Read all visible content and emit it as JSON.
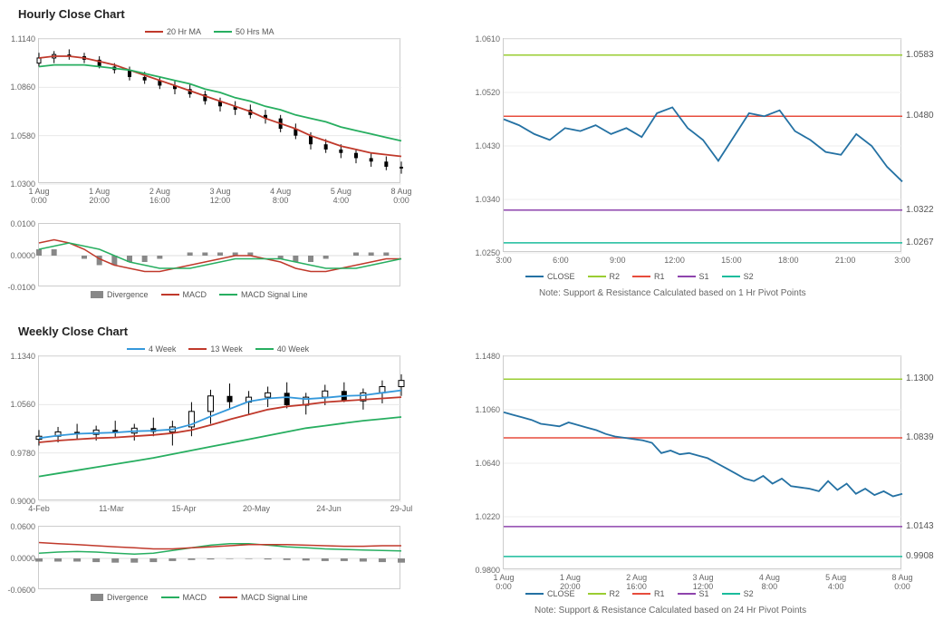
{
  "hourly": {
    "title": "Hourly Close Chart",
    "price": {
      "legend": [
        {
          "label": "20 Hr MA",
          "color": "#c0392b"
        },
        {
          "label": "50 Hrs MA",
          "color": "#27ae60"
        }
      ],
      "ylim": [
        1.03,
        1.114
      ],
      "yticks": [
        1.03,
        1.058,
        1.086,
        1.114
      ],
      "xlabels": [
        "1 Aug\n0:00",
        "1 Aug\n20:00",
        "2 Aug\n16:00",
        "3 Aug\n12:00",
        "4 Aug\n8:00",
        "5 Aug\n4:00",
        "8 Aug\n0:00"
      ],
      "candles_color": "#000000",
      "candles": [
        [
          1.1,
          1.106,
          1.098,
          1.103
        ],
        [
          1.103,
          1.107,
          1.1,
          1.105
        ],
        [
          1.105,
          1.108,
          1.102,
          1.104
        ],
        [
          1.104,
          1.106,
          1.1,
          1.102
        ],
        [
          1.102,
          1.104,
          1.097,
          1.098
        ],
        [
          1.098,
          1.1,
          1.094,
          1.096
        ],
        [
          1.096,
          1.098,
          1.09,
          1.092
        ],
        [
          1.092,
          1.095,
          1.088,
          1.09
        ],
        [
          1.09,
          1.092,
          1.085,
          1.087
        ],
        [
          1.087,
          1.09,
          1.082,
          1.085
        ],
        [
          1.085,
          1.088,
          1.08,
          1.082
        ],
        [
          1.082,
          1.084,
          1.076,
          1.078
        ],
        [
          1.078,
          1.08,
          1.072,
          1.075
        ],
        [
          1.075,
          1.078,
          1.07,
          1.073
        ],
        [
          1.073,
          1.076,
          1.068,
          1.07
        ],
        [
          1.07,
          1.073,
          1.065,
          1.068
        ],
        [
          1.068,
          1.07,
          1.06,
          1.062
        ],
        [
          1.062,
          1.065,
          1.056,
          1.058
        ],
        [
          1.058,
          1.06,
          1.05,
          1.053
        ],
        [
          1.053,
          1.056,
          1.048,
          1.05
        ],
        [
          1.05,
          1.053,
          1.045,
          1.048
        ],
        [
          1.048,
          1.05,
          1.042,
          1.045
        ],
        [
          1.045,
          1.048,
          1.04,
          1.043
        ],
        [
          1.043,
          1.046,
          1.038,
          1.04
        ],
        [
          1.04,
          1.043,
          1.036,
          1.039
        ]
      ],
      "ma20": [
        1.103,
        1.104,
        1.104,
        1.103,
        1.101,
        1.099,
        1.096,
        1.093,
        1.09,
        1.087,
        1.084,
        1.081,
        1.078,
        1.075,
        1.072,
        1.068,
        1.065,
        1.062,
        1.058,
        1.055,
        1.052,
        1.05,
        1.048,
        1.047,
        1.046
      ],
      "ma50": [
        1.098,
        1.099,
        1.099,
        1.099,
        1.098,
        1.097,
        1.096,
        1.094,
        1.092,
        1.09,
        1.088,
        1.085,
        1.083,
        1.08,
        1.078,
        1.075,
        1.073,
        1.07,
        1.068,
        1.066,
        1.063,
        1.061,
        1.059,
        1.057,
        1.055
      ]
    },
    "macd": {
      "legend": [
        {
          "label": "Divergence",
          "color": "#888888",
          "box": true
        },
        {
          "label": "MACD",
          "color": "#c0392b"
        },
        {
          "label": "MACD Signal Line",
          "color": "#27ae60"
        }
      ],
      "ylim": [
        -0.01,
        0.01
      ],
      "yticks": [
        -0.01,
        0.0,
        0.01
      ],
      "macd": [
        0.004,
        0.005,
        0.004,
        0.002,
        -0.001,
        -0.003,
        -0.004,
        -0.005,
        -0.005,
        -0.004,
        -0.003,
        -0.002,
        -0.001,
        0.0,
        0.0,
        -0.001,
        -0.002,
        -0.004,
        -0.005,
        -0.005,
        -0.004,
        -0.003,
        -0.002,
        -0.001,
        -0.001
      ],
      "signal": [
        0.002,
        0.003,
        0.004,
        0.003,
        0.002,
        0.0,
        -0.002,
        -0.003,
        -0.004,
        -0.004,
        -0.004,
        -0.003,
        -0.002,
        -0.001,
        -0.001,
        -0.001,
        -0.001,
        -0.002,
        -0.003,
        -0.004,
        -0.004,
        -0.004,
        -0.003,
        -0.002,
        -0.001
      ],
      "hist": [
        0.002,
        0.002,
        0.0,
        -0.001,
        -0.003,
        -0.003,
        -0.002,
        -0.002,
        -0.001,
        0.0,
        0.001,
        0.001,
        0.001,
        0.001,
        0.001,
        0.0,
        -0.001,
        -0.002,
        -0.002,
        -0.001,
        0.0,
        0.001,
        0.001,
        0.001,
        0.0
      ]
    },
    "pivot": {
      "ylim": [
        1.025,
        1.061
      ],
      "yticks": [
        1.025,
        1.034,
        1.043,
        1.052,
        1.061
      ],
      "xlabels": [
        "3:00",
        "6:00",
        "9:00",
        "12:00",
        "15:00",
        "18:00",
        "21:00",
        "3:00"
      ],
      "lines": {
        "R2": {
          "value": 1.0583,
          "color": "#9acd32"
        },
        "R1": {
          "value": 1.048,
          "color": "#e74c3c"
        },
        "S1": {
          "value": 1.0322,
          "color": "#8e44ad"
        },
        "S2": {
          "value": 1.0267,
          "color": "#1abc9c"
        }
      },
      "close_color": "#2471a3",
      "close": [
        1.0475,
        1.0465,
        1.045,
        1.044,
        1.046,
        1.0455,
        1.0465,
        1.045,
        1.046,
        1.0445,
        1.0485,
        1.0495,
        1.046,
        1.044,
        1.0405,
        1.0445,
        1.0485,
        1.048,
        1.049,
        1.0455,
        1.044,
        1.042,
        1.0415,
        1.045,
        1.043,
        1.0395,
        1.037
      ],
      "legend": [
        {
          "label": "CLOSE",
          "color": "#2471a3"
        },
        {
          "label": "R2",
          "color": "#9acd32"
        },
        {
          "label": "R1",
          "color": "#e74c3c"
        },
        {
          "label": "S1",
          "color": "#8e44ad"
        },
        {
          "label": "S2",
          "color": "#1abc9c"
        }
      ],
      "note": "Note: Support & Resistance Calculated based on 1 Hr Pivot Points"
    }
  },
  "weekly": {
    "title": "Weekly Close Chart",
    "price": {
      "legend": [
        {
          "label": "4 Week",
          "color": "#3498db"
        },
        {
          "label": "13 Week",
          "color": "#c0392b"
        },
        {
          "label": "40 Week",
          "color": "#27ae60"
        }
      ],
      "ylim": [
        0.9,
        1.134
      ],
      "yticks": [
        0.9,
        0.978,
        1.056,
        1.134
      ],
      "xlabels": [
        "4-Feb",
        "11-Mar",
        "15-Apr",
        "20-May",
        "24-Jun",
        "29-Jul"
      ],
      "candles": [
        [
          1.0,
          1.015,
          0.99,
          1.005
        ],
        [
          1.005,
          1.02,
          0.995,
          1.012
        ],
        [
          1.012,
          1.025,
          1.0,
          1.008
        ],
        [
          1.008,
          1.022,
          0.998,
          1.015
        ],
        [
          1.015,
          1.03,
          1.003,
          1.01
        ],
        [
          1.01,
          1.025,
          0.998,
          1.018
        ],
        [
          1.018,
          1.035,
          1.005,
          1.012
        ],
        [
          1.012,
          1.03,
          0.99,
          1.02
        ],
        [
          1.02,
          1.06,
          1.005,
          1.045
        ],
        [
          1.045,
          1.08,
          1.025,
          1.07
        ],
        [
          1.07,
          1.09,
          1.05,
          1.06
        ],
        [
          1.06,
          1.078,
          1.04,
          1.068
        ],
        [
          1.068,
          1.085,
          1.052,
          1.075
        ],
        [
          1.075,
          1.092,
          1.05,
          1.055
        ],
        [
          1.055,
          1.075,
          1.04,
          1.068
        ],
        [
          1.068,
          1.088,
          1.055,
          1.078
        ],
        [
          1.078,
          1.092,
          1.06,
          1.062
        ],
        [
          1.062,
          1.082,
          1.048,
          1.075
        ],
        [
          1.075,
          1.095,
          1.058,
          1.085
        ],
        [
          1.085,
          1.105,
          1.07,
          1.095
        ]
      ],
      "ma4": [
        1.002,
        1.006,
        1.009,
        1.01,
        1.011,
        1.013,
        1.014,
        1.016,
        1.024,
        1.037,
        1.049,
        1.061,
        1.066,
        1.068,
        1.065,
        1.067,
        1.07,
        1.071,
        1.075,
        1.079
      ],
      "ma13": [
        0.995,
        0.998,
        1.0,
        1.002,
        1.003,
        1.005,
        1.007,
        1.01,
        1.015,
        1.023,
        1.032,
        1.04,
        1.048,
        1.053,
        1.056,
        1.06,
        1.062,
        1.064,
        1.066,
        1.068
      ],
      "ma40": [
        0.94,
        0.945,
        0.95,
        0.955,
        0.96,
        0.965,
        0.97,
        0.976,
        0.982,
        0.988,
        0.994,
        1.0,
        1.006,
        1.012,
        1.018,
        1.022,
        1.026,
        1.03,
        1.033,
        1.036
      ]
    },
    "macd": {
      "legend": [
        {
          "label": "Divergence",
          "color": "#888888",
          "box": true
        },
        {
          "label": "MACD",
          "color": "#27ae60"
        },
        {
          "label": "MACD Signal Line",
          "color": "#c0392b"
        }
      ],
      "ylim": [
        -0.06,
        0.06
      ],
      "yticks": [
        -0.06,
        0.0,
        0.06
      ],
      "macd": [
        0.01,
        0.012,
        0.013,
        0.012,
        0.01,
        0.008,
        0.01,
        0.015,
        0.02,
        0.025,
        0.028,
        0.028,
        0.025,
        0.022,
        0.02,
        0.018,
        0.017,
        0.016,
        0.015,
        0.014
      ],
      "signal": [
        0.03,
        0.028,
        0.026,
        0.024,
        0.022,
        0.02,
        0.018,
        0.018,
        0.02,
        0.022,
        0.024,
        0.026,
        0.026,
        0.026,
        0.025,
        0.024,
        0.023,
        0.023,
        0.024,
        0.024
      ],
      "hist": [
        -0.006,
        -0.006,
        -0.006,
        -0.007,
        -0.008,
        -0.008,
        -0.007,
        -0.005,
        -0.003,
        -0.002,
        -0.001,
        -0.001,
        -0.002,
        -0.003,
        -0.004,
        -0.005,
        -0.005,
        -0.006,
        -0.007,
        -0.008
      ]
    },
    "pivot": {
      "ylim": [
        0.98,
        1.148
      ],
      "yticks": [
        0.98,
        1.022,
        1.064,
        1.106,
        1.148
      ],
      "xlabels": [
        "1 Aug\n0:00",
        "1 Aug\n20:00",
        "2 Aug\n16:00",
        "3 Aug\n12:00",
        "4 Aug\n8:00",
        "5 Aug\n4:00",
        "8 Aug\n0:00"
      ],
      "lines": {
        "R2": {
          "value": 1.13,
          "color": "#9acd32"
        },
        "R1": {
          "value": 1.0839,
          "color": "#e74c3c"
        },
        "S1": {
          "value": 1.0143,
          "color": "#8e44ad"
        },
        "S2": {
          "value": 0.9908,
          "color": "#1abc9c"
        }
      },
      "close_color": "#2471a3",
      "close": [
        1.104,
        1.102,
        1.1,
        1.098,
        1.095,
        1.094,
        1.093,
        1.096,
        1.094,
        1.092,
        1.09,
        1.087,
        1.085,
        1.084,
        1.083,
        1.082,
        1.08,
        1.072,
        1.074,
        1.071,
        1.072,
        1.07,
        1.068,
        1.064,
        1.06,
        1.056,
        1.052,
        1.05,
        1.054,
        1.048,
        1.052,
        1.046,
        1.045,
        1.044,
        1.042,
        1.05,
        1.043,
        1.048,
        1.04,
        1.044,
        1.039,
        1.042,
        1.038,
        1.04
      ],
      "legend": [
        {
          "label": "CLOSE",
          "color": "#2471a3"
        },
        {
          "label": "R2",
          "color": "#9acd32"
        },
        {
          "label": "R1",
          "color": "#e74c3c"
        },
        {
          "label": "S1",
          "color": "#8e44ad"
        },
        {
          "label": "S2",
          "color": "#1abc9c"
        }
      ],
      "note": "Note: Support & Resistance Calculated based on 24 Hr Pivot Points"
    }
  }
}
